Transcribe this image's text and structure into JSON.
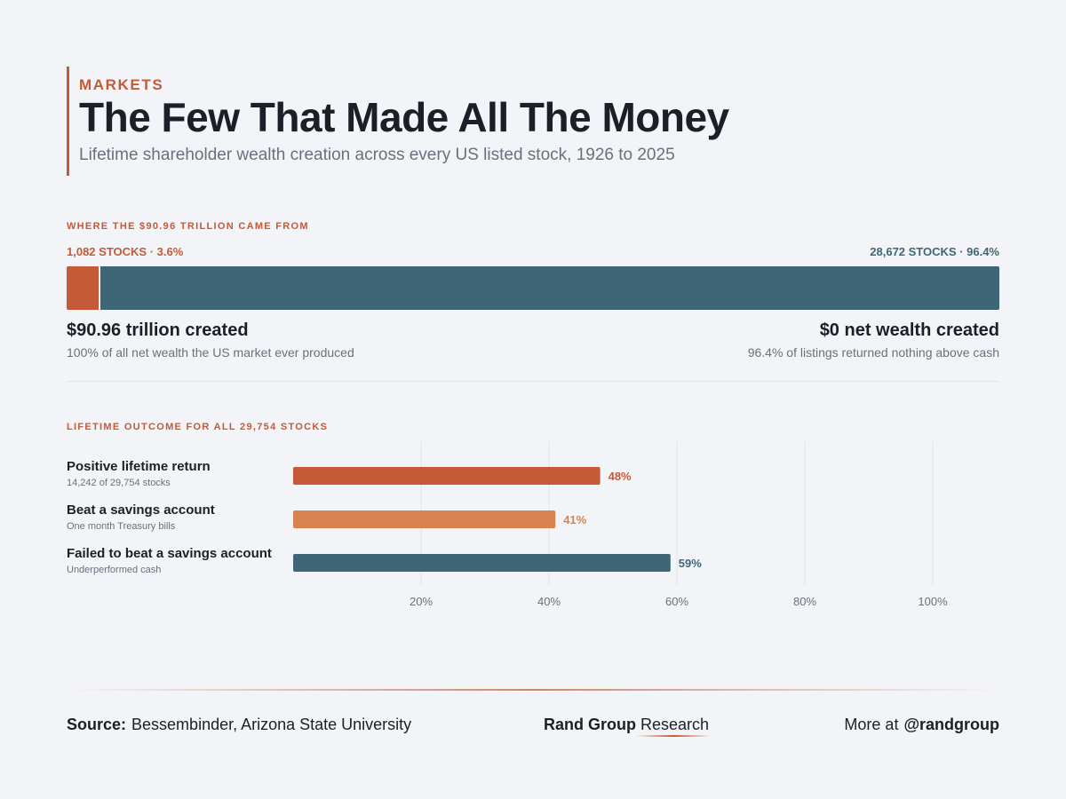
{
  "header": {
    "kicker": "MARKETS",
    "title": "The Few That Made All The Money",
    "subtitle": "Lifetime shareholder wealth creation across every US listed stock, 1926 to 2025"
  },
  "wealth_section": {
    "label": "WHERE THE $90.96 TRILLION CAME FROM",
    "left_caption": "1,082 STOCKS · 3.6%",
    "right_caption": "28,672 STOCKS · 96.4%",
    "left_head": "$90.96 trillion created",
    "left_sub": "100% of all net wealth the US market ever produced",
    "right_head": "$0 net wealth created",
    "right_sub": "96.4% of listings returned nothing above cash"
  },
  "outcome_section": {
    "label": "LIFETIME OUTCOME FOR ALL 29,754 STOCKS"
  },
  "footer": {
    "source_label": "Source:",
    "source_text": "Bessembinder, Arizona State University",
    "brand_bold": "Rand Group",
    "brand_regular": "Research",
    "more_label": "More at",
    "more_handle": "@randgroup"
  },
  "chart_data": [
    {
      "type": "bar",
      "orientation": "horizontal-stacked",
      "categories": [
        "1,082 STOCKS",
        "28,672 STOCKS"
      ],
      "values": [
        3.6,
        96.4
      ],
      "colors": [
        "#c45a37",
        "#3f6677"
      ]
    },
    {
      "type": "bar",
      "orientation": "horizontal",
      "categories": [
        "Positive lifetime return",
        "Beat a savings account",
        "Failed to beat a savings account"
      ],
      "subtitles": [
        "14,242 of 29,754 stocks",
        "One month Treasury bills",
        "Underperformed cash"
      ],
      "values": [
        48,
        41,
        59
      ],
      "value_labels": [
        "48%",
        "41%",
        "59%"
      ],
      "colors": [
        "#c45a37",
        "#d8834f",
        "#3f6677"
      ],
      "xlim": [
        0,
        110
      ],
      "xticks": [
        20,
        40,
        60,
        80,
        100
      ],
      "xtick_labels": [
        "20%",
        "40%",
        "60%",
        "80%",
        "100%"
      ],
      "grid": true
    }
  ]
}
